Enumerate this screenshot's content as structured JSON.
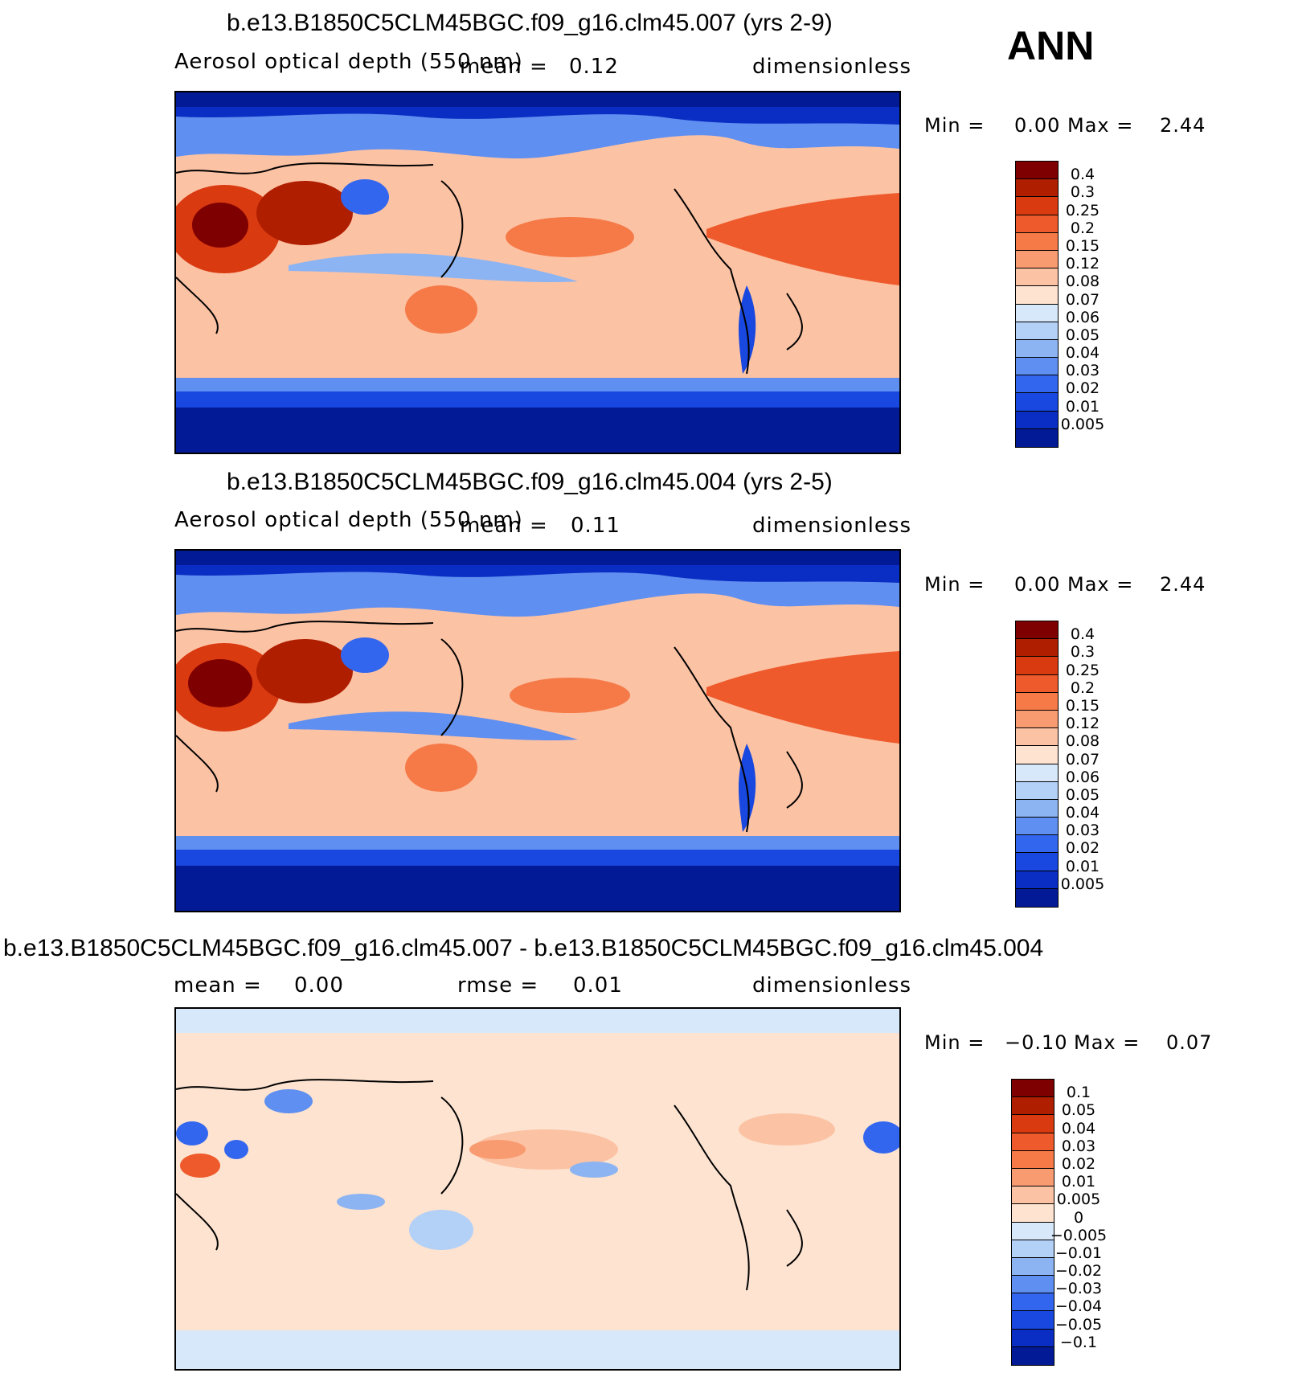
{
  "chart_data": [
    {
      "type": "heatmap",
      "title": "b.e13.B1850C5CLM45BGC.f09_g16.clm45.007 (yrs 2-9)",
      "variable": "Aerosol optical depth (550 nm)",
      "stat1_label": "mean =",
      "stat1_value": "0.12",
      "units": "dimensionless",
      "min_label": "Min =",
      "min_value": "0.00",
      "max_label": "Max =",
      "max_value": "2.44",
      "levels": [
        "0.4",
        "0.3",
        "0.25",
        "0.2",
        "0.15",
        "0.12",
        "0.08",
        "0.07",
        "0.06",
        "0.05",
        "0.04",
        "0.03",
        "0.02",
        "0.01",
        "0.005"
      ],
      "colors": [
        "#7f0000",
        "#b01e00",
        "#d93a10",
        "#ee5a2b",
        "#f57a48",
        "#f99b70",
        "#fcc2a4",
        "#fde3d0",
        "#d7e8fb",
        "#b3d0f7",
        "#8cb4f2",
        "#5f8ff0",
        "#3366ee",
        "#1848df",
        "#0a2ec4",
        "#021a96"
      ]
    },
    {
      "type": "heatmap",
      "title": "b.e13.B1850C5CLM45BGC.f09_g16.clm45.004 (yrs 2-5)",
      "variable": "Aerosol optical depth (550 nm)",
      "stat1_label": "mean =",
      "stat1_value": "0.11",
      "units": "dimensionless",
      "min_label": "Min =",
      "min_value": "0.00",
      "max_label": "Max =",
      "max_value": "2.44",
      "levels": [
        "0.4",
        "0.3",
        "0.25",
        "0.2",
        "0.15",
        "0.12",
        "0.08",
        "0.07",
        "0.06",
        "0.05",
        "0.04",
        "0.03",
        "0.02",
        "0.01",
        "0.005"
      ],
      "colors": [
        "#7f0000",
        "#b01e00",
        "#d93a10",
        "#ee5a2b",
        "#f57a48",
        "#f99b70",
        "#fcc2a4",
        "#fde3d0",
        "#d7e8fb",
        "#b3d0f7",
        "#8cb4f2",
        "#5f8ff0",
        "#3366ee",
        "#1848df",
        "#0a2ec4",
        "#021a96"
      ]
    },
    {
      "type": "heatmap",
      "title": "b.e13.B1850C5CLM45BGC.f09_g16.clm45.007 - b.e13.B1850C5CLM45BGC.f09_g16.clm45.004",
      "stat1_label": "mean =",
      "stat1_value": "0.00",
      "stat2_label": "rmse =",
      "stat2_value": "0.01",
      "units": "dimensionless",
      "min_label": "Min =",
      "min_value": "−0.10",
      "max_label": "Max =",
      "max_value": "0.07",
      "levels": [
        "0.1",
        "0.05",
        "0.04",
        "0.03",
        "0.02",
        "0.01",
        "0.005",
        "0",
        "−0.005",
        "−0.01",
        "−0.02",
        "−0.03",
        "−0.04",
        "−0.05",
        "−0.1"
      ],
      "colors": [
        "#7f0000",
        "#b01e00",
        "#d93a10",
        "#ee5a2b",
        "#f57a48",
        "#f99b70",
        "#fcc2a4",
        "#fde3d0",
        "#d7e8fb",
        "#b3d0f7",
        "#8cb4f2",
        "#5f8ff0",
        "#3366ee",
        "#1848df",
        "#0a2ec4",
        "#021a96"
      ]
    }
  ],
  "season": "ANN"
}
